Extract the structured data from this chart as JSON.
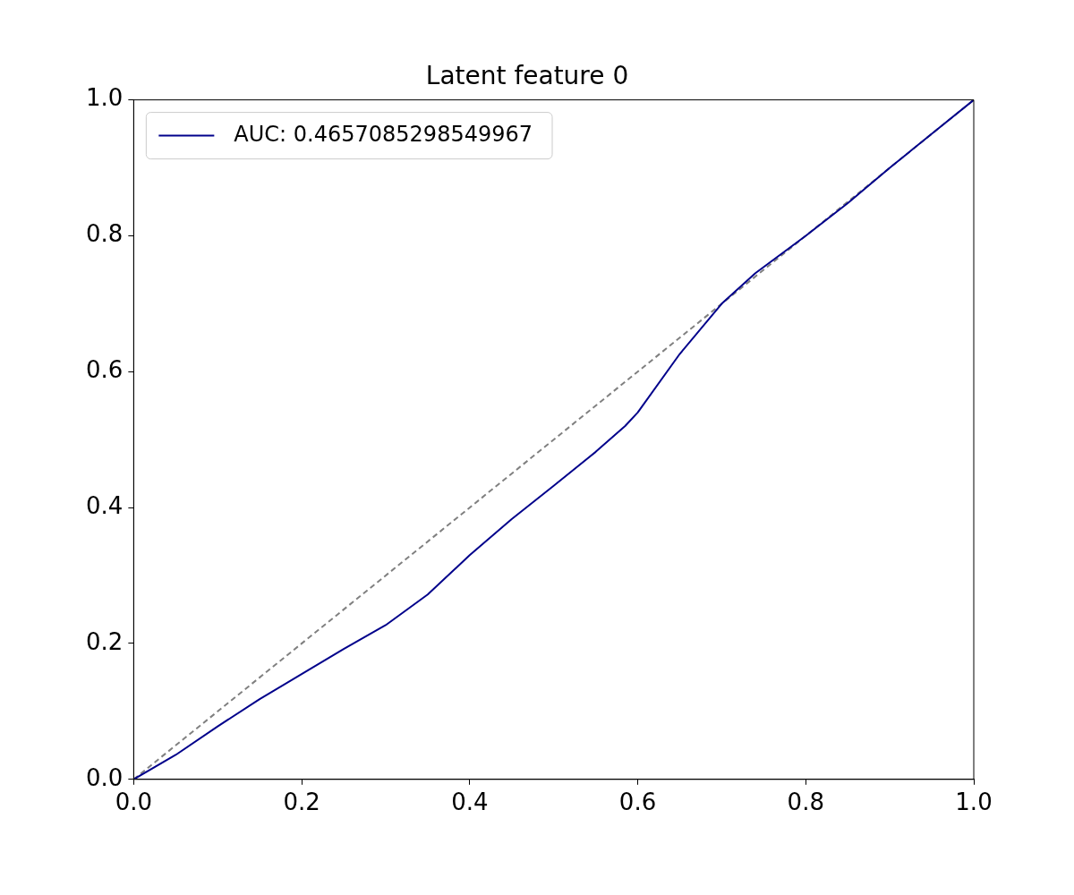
{
  "chart_data": {
    "type": "line",
    "title": "Latent feature 0",
    "series": [
      {
        "name": "AUC: 0.4657085298549967",
        "color": "#00008b",
        "line_style": "solid",
        "x": [
          0,
          0.05,
          0.1,
          0.15,
          0.2,
          0.25,
          0.3,
          0.35,
          0.4,
          0.45,
          0.5,
          0.55,
          0.585,
          0.6,
          0.65,
          0.7,
          0.74,
          0.8,
          0.85,
          0.9,
          0.95,
          1
        ],
        "values": [
          0,
          0.036,
          0.078,
          0.118,
          0.155,
          0.192,
          0.227,
          0.272,
          0.33,
          0.383,
          0.432,
          0.482,
          0.52,
          0.54,
          0.626,
          0.7,
          0.745,
          0.8,
          0.848,
          0.9,
          0.95,
          1
        ]
      },
      {
        "color": "#808080",
        "line_style": "dashed",
        "x": [
          0,
          1
        ],
        "values": [
          0,
          1
        ]
      }
    ],
    "xlim": [
      0,
      1
    ],
    "ylim": [
      0,
      1
    ],
    "xticks": [
      {
        "value": 0,
        "label": "0.0"
      },
      {
        "value": 0.2,
        "label": "0.2"
      },
      {
        "value": 0.4,
        "label": "0.4"
      },
      {
        "value": 0.6,
        "label": "0.6"
      },
      {
        "value": 0.8,
        "label": "0.8"
      },
      {
        "value": 1,
        "label": "1.0"
      }
    ],
    "yticks": [
      {
        "value": 0,
        "label": "0.0"
      },
      {
        "value": 0.2,
        "label": "0.2"
      },
      {
        "value": 0.4,
        "label": "0.4"
      },
      {
        "value": 0.6,
        "label": "0.6"
      },
      {
        "value": 0.8,
        "label": "0.8"
      },
      {
        "value": 1,
        "label": "1.0"
      }
    ],
    "grid": false,
    "legend": "top left"
  }
}
